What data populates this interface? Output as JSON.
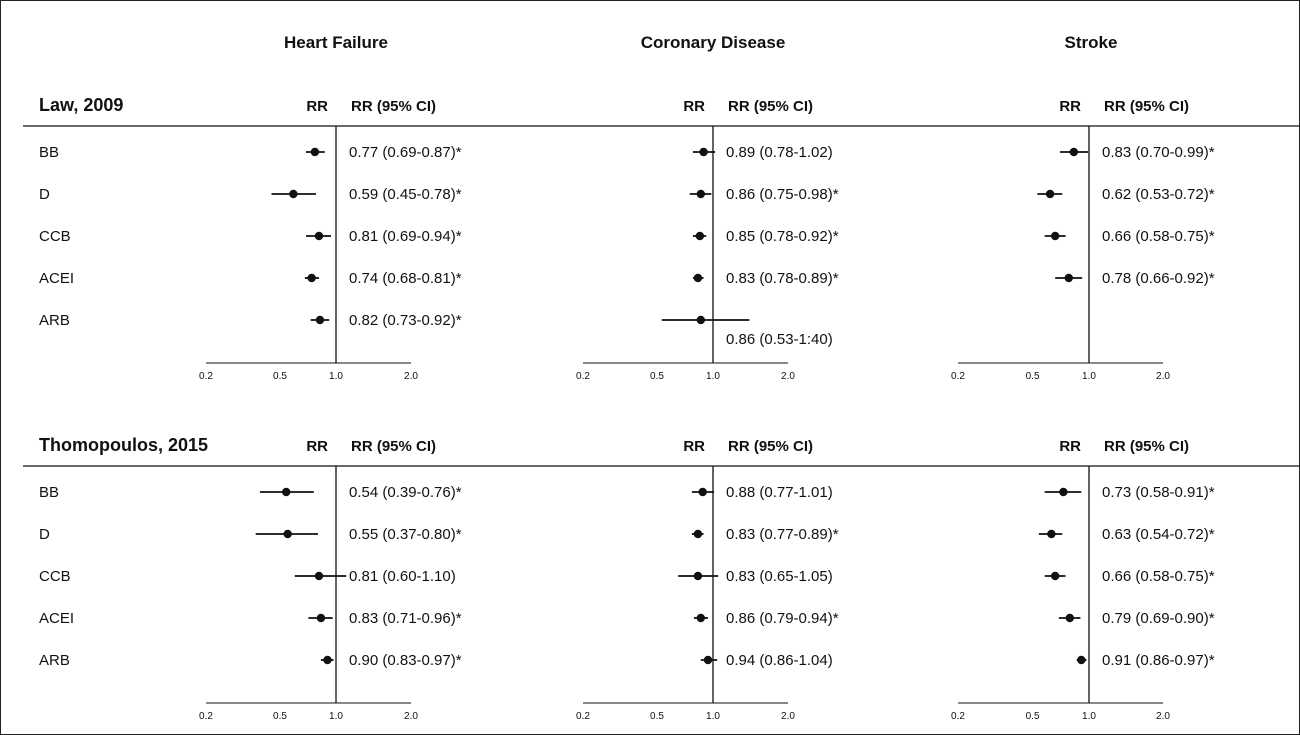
{
  "chart_data": {
    "type": "forest",
    "scale": "log",
    "reference_line": 1.0,
    "axis_ticks": [
      "0.2",
      "0.5",
      "1.0",
      "2.0"
    ],
    "xlim": [
      0.2,
      2.0
    ],
    "outcomes": [
      "Heart Failure",
      "Coronary Disease",
      "Stroke"
    ],
    "column_headers": {
      "point": "RR",
      "ci": "RR (95% CI)"
    },
    "drug_classes": [
      "BB",
      "D",
      "CCB",
      "ACEI",
      "ARB"
    ],
    "studies": [
      {
        "name": "Law, 2009",
        "panels": [
          {
            "outcome": "Heart Failure",
            "rows": [
              {
                "label": "BB",
                "rr": 0.77,
                "lo": 0.69,
                "hi": 0.87,
                "text": "0.77 (0.69-0.87)*"
              },
              {
                "label": "D",
                "rr": 0.59,
                "lo": 0.45,
                "hi": 0.78,
                "text": "0.59 (0.45-0.78)*"
              },
              {
                "label": "CCB",
                "rr": 0.81,
                "lo": 0.69,
                "hi": 0.94,
                "text": "0.81 (0.69-0.94)*"
              },
              {
                "label": "ACEI",
                "rr": 0.74,
                "lo": 0.68,
                "hi": 0.81,
                "text": "0.74 (0.68-0.81)*"
              },
              {
                "label": "ARB",
                "rr": 0.82,
                "lo": 0.73,
                "hi": 0.92,
                "text": "0.82 (0.73-0.92)*"
              }
            ]
          },
          {
            "outcome": "Coronary Disease",
            "rows": [
              {
                "label": "BB",
                "rr": 0.89,
                "lo": 0.78,
                "hi": 1.02,
                "text": "0.89 (0.78-1.02)"
              },
              {
                "label": "D",
                "rr": 0.86,
                "lo": 0.75,
                "hi": 0.98,
                "text": "0.86 (0.75-0.98)*"
              },
              {
                "label": "CCB",
                "rr": 0.85,
                "lo": 0.78,
                "hi": 0.92,
                "text": "0.85 (0.78-0.92)*"
              },
              {
                "label": "ACEI",
                "rr": 0.83,
                "lo": 0.78,
                "hi": 0.89,
                "text": "0.83 (0.78-0.89)*"
              },
              {
                "label": "ARB",
                "rr": 0.86,
                "lo": 0.53,
                "hi": 1.4,
                "text": "0.86 (0.53-1:40)",
                "text_offset": "below"
              }
            ]
          },
          {
            "outcome": "Stroke",
            "rows": [
              {
                "label": "BB",
                "rr": 0.83,
                "lo": 0.7,
                "hi": 0.99,
                "text": "0.83 (0.70-0.99)*"
              },
              {
                "label": "D",
                "rr": 0.62,
                "lo": 0.53,
                "hi": 0.72,
                "text": "0.62 (0.53-0.72)*"
              },
              {
                "label": "CCB",
                "rr": 0.66,
                "lo": 0.58,
                "hi": 0.75,
                "text": "0.66 (0.58-0.75)*"
              },
              {
                "label": "ACEI",
                "rr": 0.78,
                "lo": 0.66,
                "hi": 0.92,
                "text": "0.78 (0.66-0.92)*"
              }
            ]
          }
        ]
      },
      {
        "name": "Thomopoulos, 2015",
        "panels": [
          {
            "outcome": "Heart Failure",
            "rows": [
              {
                "label": "BB",
                "rr": 0.54,
                "lo": 0.39,
                "hi": 0.76,
                "text": "0.54 (0.39-0.76)*"
              },
              {
                "label": "D",
                "rr": 0.55,
                "lo": 0.37,
                "hi": 0.8,
                "text": "0.55 (0.37-0.80)*"
              },
              {
                "label": "CCB",
                "rr": 0.81,
                "lo": 0.6,
                "hi": 1.1,
                "text": "0.81 (0.60-1.10)"
              },
              {
                "label": "ACEI",
                "rr": 0.83,
                "lo": 0.71,
                "hi": 0.96,
                "text": "0.83 (0.71-0.96)*"
              },
              {
                "label": "ARB",
                "rr": 0.9,
                "lo": 0.83,
                "hi": 0.97,
                "text": "0.90 (0.83-0.97)*"
              }
            ]
          },
          {
            "outcome": "Coronary Disease",
            "rows": [
              {
                "label": "BB",
                "rr": 0.88,
                "lo": 0.77,
                "hi": 1.01,
                "text": "0.88 (0.77-1.01)"
              },
              {
                "label": "D",
                "rr": 0.83,
                "lo": 0.77,
                "hi": 0.89,
                "text": "0.83 (0.77-0.89)*"
              },
              {
                "label": "CCB",
                "rr": 0.83,
                "lo": 0.65,
                "hi": 1.05,
                "text": "0.83 (0.65-1.05)"
              },
              {
                "label": "ACEI",
                "rr": 0.86,
                "lo": 0.79,
                "hi": 0.94,
                "text": "0.86 (0.79-0.94)*"
              },
              {
                "label": "ARB",
                "rr": 0.94,
                "lo": 0.86,
                "hi": 1.04,
                "text": "0.94 (0.86-1.04)"
              }
            ]
          },
          {
            "outcome": "Stroke",
            "rows": [
              {
                "label": "BB",
                "rr": 0.73,
                "lo": 0.58,
                "hi": 0.91,
                "text": "0.73 (0.58-0.91)*"
              },
              {
                "label": "D",
                "rr": 0.63,
                "lo": 0.54,
                "hi": 0.72,
                "text": "0.63 (0.54-0.72)*"
              },
              {
                "label": "CCB",
                "rr": 0.66,
                "lo": 0.58,
                "hi": 0.75,
                "text": "0.66 (0.58-0.75)*"
              },
              {
                "label": "ACEI",
                "rr": 0.79,
                "lo": 0.69,
                "hi": 0.9,
                "text": "0.79 (0.69-0.90)*"
              },
              {
                "label": "ARB",
                "rr": 0.91,
                "lo": 0.86,
                "hi": 0.97,
                "text": "0.91 (0.86-0.97)*"
              }
            ]
          }
        ]
      }
    ]
  },
  "colors": {
    "ink": "#111111",
    "background": "#ffffff"
  }
}
